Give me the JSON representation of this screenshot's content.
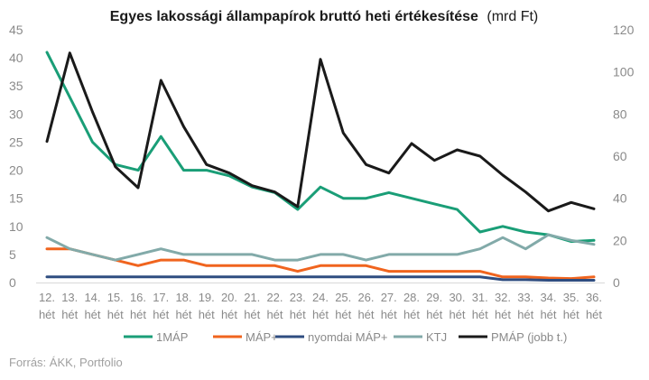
{
  "chart_data": {
    "type": "line",
    "title": "Egyes lakossági állampapírok bruttó heti értékesítése",
    "title_unit": "(mrd Ft)",
    "source": "Forrás: ÁKK, Portfolio",
    "categories": [
      [
        "12.",
        "hét"
      ],
      [
        "13.",
        "hét"
      ],
      [
        "14.",
        "hét"
      ],
      [
        "15.",
        "hét"
      ],
      [
        "16.",
        "hét"
      ],
      [
        "17.",
        "hét"
      ],
      [
        "18.",
        "hét"
      ],
      [
        "19.",
        "hét"
      ],
      [
        "20.",
        "hét"
      ],
      [
        "21.",
        "hét"
      ],
      [
        "22.",
        "hét"
      ],
      [
        "23.",
        "hét"
      ],
      [
        "24.",
        "hét"
      ],
      [
        "25.",
        "hét"
      ],
      [
        "26.",
        "hét"
      ],
      [
        "27.",
        "hét"
      ],
      [
        "28.",
        "hét"
      ],
      [
        "29.",
        "hét"
      ],
      [
        "30.",
        "hét"
      ],
      [
        "31.",
        "hét"
      ],
      [
        "32.",
        "hét"
      ],
      [
        "33.",
        "hét"
      ],
      [
        "34.",
        "hét"
      ],
      [
        "35.",
        "hét"
      ],
      [
        "36.",
        "hét"
      ]
    ],
    "y_left": {
      "min": 0,
      "max": 45,
      "ticks": [
        0,
        5,
        10,
        15,
        20,
        25,
        30,
        35,
        40,
        45
      ]
    },
    "y_right": {
      "min": 0,
      "max": 120,
      "ticks": [
        0,
        20,
        40,
        60,
        80,
        100,
        120
      ]
    },
    "grid": false,
    "legend_position": "bottom",
    "series": [
      {
        "name": "1MÁP",
        "axis": "left",
        "color": "#1a9e77",
        "values": [
          41,
          33,
          25,
          21,
          20,
          26,
          20,
          20,
          19,
          17,
          16,
          13,
          17,
          15,
          15,
          16,
          15,
          14,
          13,
          9,
          10,
          9,
          8.5,
          7.3,
          7.5
        ]
      },
      {
        "name": "MÁP+",
        "axis": "left",
        "color": "#f0641e",
        "values": [
          6,
          6,
          5,
          4,
          3,
          4,
          4,
          3,
          3,
          3,
          3,
          2,
          3,
          3,
          3,
          2,
          2,
          2,
          2,
          2,
          1,
          1,
          0.8,
          0.7,
          1
        ]
      },
      {
        "name": "nyomdai MÁP+",
        "axis": "left",
        "color": "#2f4d80",
        "values": [
          1,
          1,
          1,
          1,
          1,
          1,
          1,
          1,
          1,
          1,
          1,
          1,
          1,
          1,
          1,
          1,
          1,
          1,
          1,
          1,
          0.5,
          0.5,
          0.4,
          0.4,
          0.4
        ]
      },
      {
        "name": "KTJ",
        "axis": "left",
        "color": "#82aaa9",
        "values": [
          8,
          6,
          5,
          4,
          5,
          6,
          5,
          5,
          5,
          5,
          4,
          4,
          5,
          5,
          4,
          5,
          5,
          5,
          5,
          6,
          8,
          6,
          8.5,
          7.5,
          6.8
        ]
      },
      {
        "name": "PMÁP (jobb t.)",
        "axis": "right",
        "color": "#1a1a1a",
        "values": [
          67,
          109,
          81,
          55,
          45,
          96,
          74,
          56,
          52,
          46,
          43,
          36,
          106,
          71,
          56,
          52,
          66,
          58,
          63,
          60,
          51,
          43,
          34,
          38,
          35
        ]
      }
    ]
  }
}
